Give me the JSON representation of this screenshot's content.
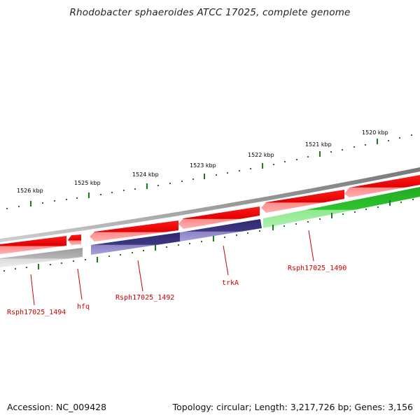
{
  "title": "Rhodobacter sphaeroides ATCC 17025, complete genome",
  "scale_labels": [
    "1526 kbp",
    "1525 kbp",
    "1524 kbp",
    "1523 kbp",
    "1522 kbp",
    "1521 kbp",
    "1520 kbp"
  ],
  "gene_labels": [
    "Rsph17025_1494",
    "hfq",
    "Rsph17025_1492",
    "trkA",
    "Rsph17025_1490"
  ],
  "colors": {
    "forward_gene": "#e60000",
    "forward_gene_light": "#ff7a7a",
    "reverse_gene_grey": "#b4b4b4",
    "reverse_gene_navy": "#3e3880",
    "reverse_gene_green": "#2db52d",
    "backbone": "#8c8c8c",
    "tick": "#1a7a1a",
    "label": "#cc0000"
  },
  "footer": {
    "accession": "Accession: NC_009428",
    "summary": "Topology: circular; Length: 3,217,726 bp; Genes: 3,156"
  }
}
